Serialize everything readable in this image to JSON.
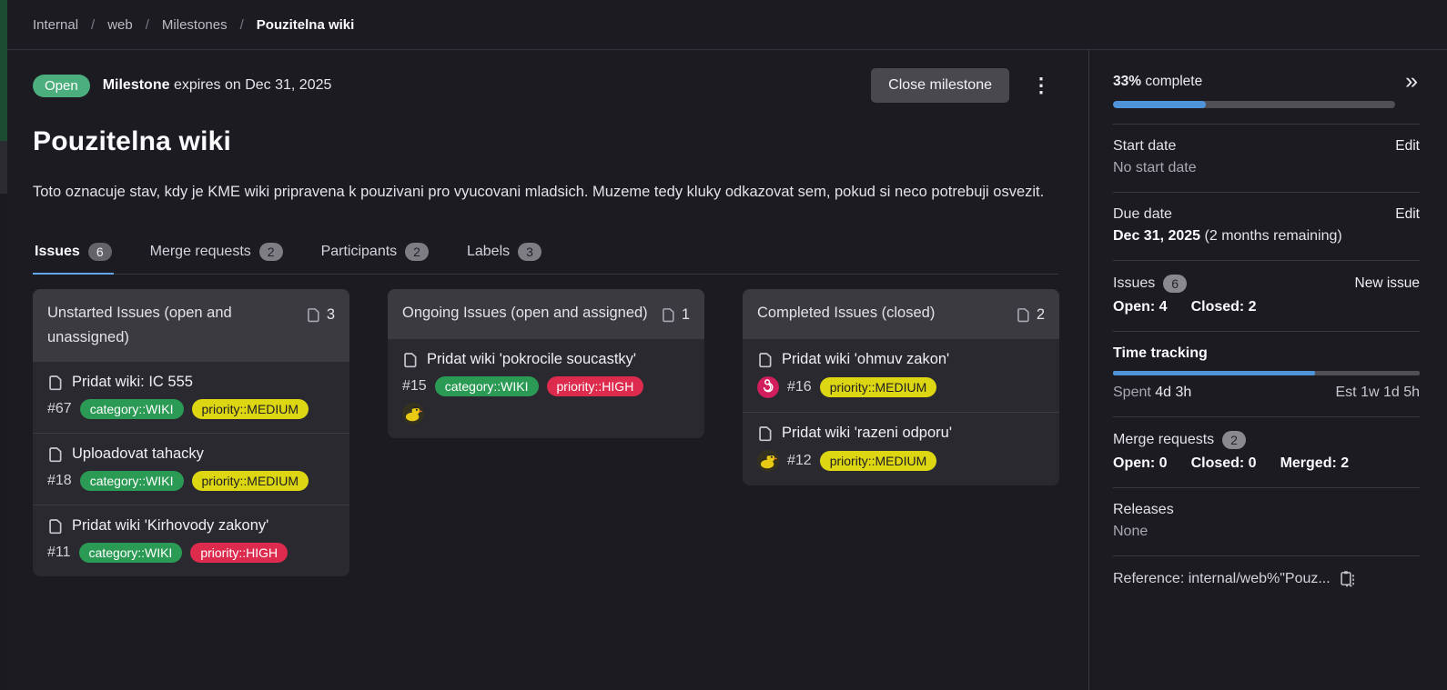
{
  "icons": {
    "kebab": "⋮",
    "collapse": "»"
  },
  "breadcrumb": {
    "items": [
      "Internal",
      "web",
      "Milestones"
    ],
    "separator": "/",
    "current": "Pouzitelna wiki"
  },
  "header": {
    "status_badge": "Open",
    "expiry_bold": "Milestone",
    "expiry_rest": " expires on Dec 31, 2025",
    "close_button": "Close milestone"
  },
  "title": "Pouzitelna wiki",
  "description": "Toto oznacuje stav, kdy je KME wiki pripravena k pouzivani pro vyucovani mladsich. Muzeme tedy kluky odkazovat sem, pokud si neco potrebuji osvezit.",
  "tabs": [
    {
      "label": "Issues",
      "count": "6",
      "active": true
    },
    {
      "label": "Merge requests",
      "count": "2",
      "active": false
    },
    {
      "label": "Participants",
      "count": "2",
      "active": false
    },
    {
      "label": "Labels",
      "count": "3",
      "active": false
    }
  ],
  "label_colors": {
    "green": {
      "bg": "#2b9a55",
      "text": "#ffffff"
    },
    "yellow": {
      "bg": "#dcd613",
      "text": "#1f1e24"
    },
    "red": {
      "bg": "#dd2b4e",
      "text": "#ffffff"
    }
  },
  "boards": [
    {
      "title": "Unstarted Issues (open and unassigned)",
      "count": "3",
      "issues": [
        {
          "title": "Pridat wiki: IC 555",
          "id": "#67",
          "labels": [
            {
              "text": "category::WIKI",
              "color": "green"
            },
            {
              "text": "priority::MEDIUM",
              "color": "yellow"
            }
          ]
        },
        {
          "title": "Uploadovat tahacky",
          "id": "#18",
          "labels": [
            {
              "text": "category::WIKI",
              "color": "green"
            },
            {
              "text": "priority::MEDIUM",
              "color": "yellow"
            }
          ]
        },
        {
          "title": "Pridat wiki 'Kirhovody zakony'",
          "id": "#11",
          "labels": [
            {
              "text": "category::WIKI",
              "color": "green"
            },
            {
              "text": "priority::HIGH",
              "color": "red"
            }
          ]
        }
      ]
    },
    {
      "title": "Ongoing Issues (open and assigned)",
      "count": "1",
      "issues": [
        {
          "title": "Pridat wiki 'pokrocile soucastky'",
          "id": "#15",
          "labels": [
            {
              "text": "category::WIKI",
              "color": "green"
            },
            {
              "text": "priority::HIGH",
              "color": "red"
            }
          ],
          "avatar": "duck",
          "avatar_position": "below"
        }
      ]
    },
    {
      "title": "Completed Issues (closed)",
      "count": "2",
      "issues": [
        {
          "title": "Pridat wiki 'ohmuv zakon'",
          "id": "#16",
          "labels": [
            {
              "text": "priority::MEDIUM",
              "color": "yellow"
            }
          ],
          "avatar": "spiral",
          "avatar_position": "inline"
        },
        {
          "title": "Pridat wiki 'razeni odporu'",
          "id": "#12",
          "labels": [
            {
              "text": "priority::MEDIUM",
              "color": "yellow"
            }
          ],
          "avatar": "duck",
          "avatar_position": "inline"
        }
      ]
    }
  ],
  "sidebar": {
    "progress": {
      "percent": "33%",
      "label": " complete",
      "value": 33
    },
    "start_date": {
      "label": "Start date",
      "action": "Edit",
      "value": "No start date"
    },
    "due_date": {
      "label": "Due date",
      "action": "Edit",
      "value_bold": "Dec 31, 2025",
      "value_rest": " (2 months remaining)"
    },
    "issues": {
      "label": "Issues",
      "count": "6",
      "action": "New issue",
      "open": "Open: 4",
      "closed": "Closed: 2"
    },
    "time_tracking": {
      "label": "Time tracking",
      "value": 66,
      "spent_label": "Spent ",
      "spent_value": "4d 3h",
      "estimate": "Est 1w 1d 5h"
    },
    "merge_requests": {
      "label": "Merge requests",
      "count": "2",
      "open": "Open: 0",
      "closed": "Closed: 0",
      "merged": "Merged: 2"
    },
    "releases": {
      "label": "Releases",
      "value": "None"
    },
    "reference": {
      "text": "Reference: internal/web%\"Pouz..."
    }
  }
}
